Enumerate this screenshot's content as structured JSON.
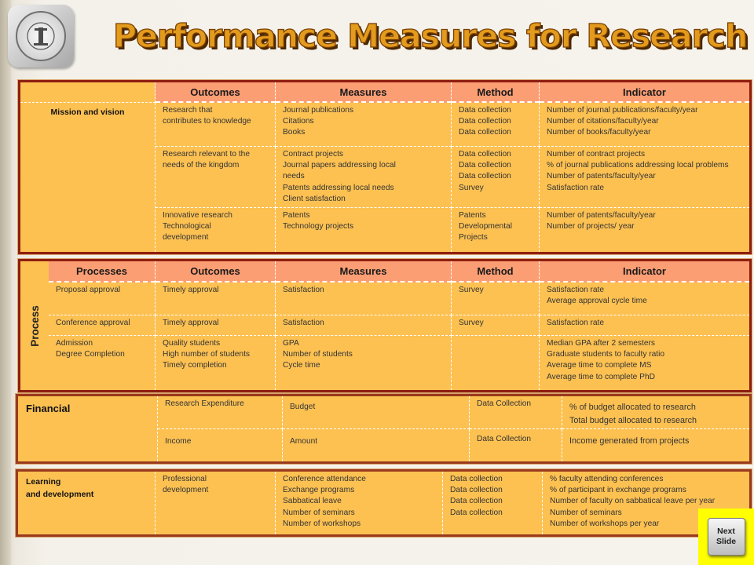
{
  "page": {
    "title": "Performance Measures for Research",
    "next_button": {
      "line1": "Next",
      "line2": "Slide"
    }
  },
  "colors": {
    "table_fill": "#fdc152",
    "header_fill": "#fc9e74",
    "border": "#8f1e10",
    "title": "#e39b1d",
    "next_button_bg": "#ffff00"
  },
  "icons": {
    "logo": "university-seal-icon"
  },
  "mission": {
    "headers": [
      "Outcomes",
      "Measures",
      "Method",
      "Indicator"
    ],
    "label": "Mission and vision",
    "rows": [
      {
        "outcome": "Research that\ncontributes to knowledge",
        "measures": "Journal publications\nCitations\nBooks",
        "method": "Data collection\nData collection\nData collection",
        "indicator": "Number of journal publications/faculty/year\nNumber of citations/faculty/year\nNumber of books/faculty/year"
      },
      {
        "outcome": "Research relevant to the\nneeds of the kingdom",
        "measures": "Contract projects\nJournal papers addressing local\nneeds\nPatents addressing local needs\nClient satisfaction",
        "method": "Data collection\nData collection\nData collection\nSurvey",
        "indicator": "Number of contract projects\n% of journal publications addressing local problems\nNumber of patents/faculty/year\nSatisfaction rate"
      },
      {
        "outcome": "Innovative research\nTechnological\ndevelopment",
        "measures": "Patents\nTechnology projects",
        "method": "Patents\nDevelopmental\nProjects",
        "indicator": "Number of patents/faculty/year\nNumber of projects/ year"
      }
    ]
  },
  "process": {
    "side_label": "Process",
    "headers": [
      "Processes",
      "Outcomes",
      "Measures",
      "Method",
      "Indicator"
    ],
    "rows": [
      {
        "process": "Proposal approval",
        "outcome": "Timely approval",
        "measures": "Satisfaction",
        "method": "Survey",
        "indicator": "Satisfaction rate\nAverage approval cycle time"
      },
      {
        "process": "Conference approval",
        "outcome": "Timely approval",
        "measures": "Satisfaction",
        "method": "Survey",
        "indicator": "Satisfaction rate"
      },
      {
        "process": "Admission\nDegree Completion",
        "outcome": "Quality students\nHigh number of students\nTimely completion",
        "measures": "GPA\nNumber of students\nCycle time",
        "method": "",
        "indicator": "Median GPA after 2 semesters\nGraduate students to faculty ratio\nAverage time to complete MS\nAverage time to complete PhD"
      }
    ]
  },
  "financial": {
    "label": "Financial",
    "rows": [
      {
        "outcome": "Research Expenditure",
        "measures": "Budget",
        "method": "Data Collection",
        "indicator": "% of budget allocated to research\nTotal budget allocated to research"
      },
      {
        "outcome": "Income",
        "measures": "Amount",
        "method": "Data Collection",
        "indicator": "Income generated from projects"
      }
    ]
  },
  "learning": {
    "label": "Learning\nand development",
    "outcome": "Professional\ndevelopment",
    "measures": "Conference attendance\nExchange programs\nSabbatical leave\nNumber of seminars\nNumber of workshops",
    "method": "Data collection\nData collection\nData collection\nData collection",
    "indicator": "% faculty attending conferences\n% of participant in exchange programs\nNumber of faculty on sabbatical leave per year\nNumber of seminars\nNumber of workshops per year"
  }
}
